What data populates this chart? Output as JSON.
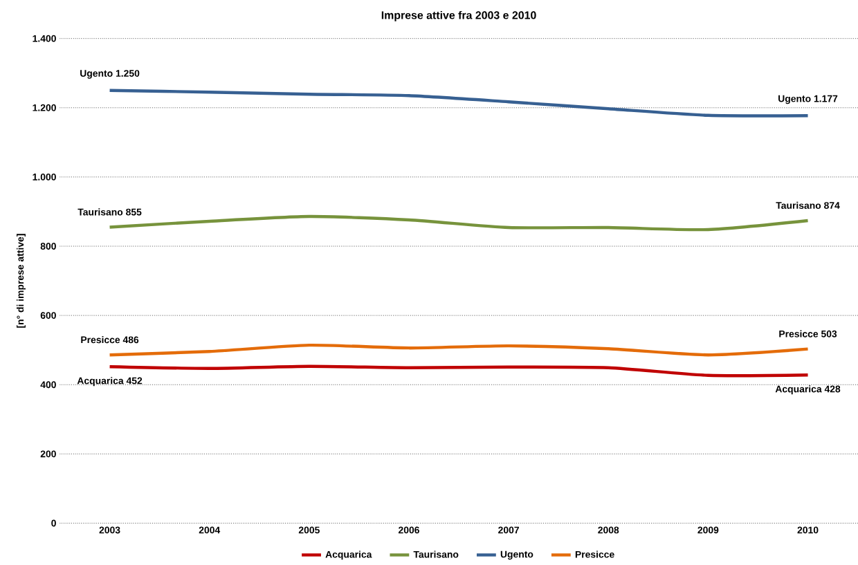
{
  "chart_data": {
    "type": "line",
    "title": "Imprese attive fra 2003 e 2010",
    "ylabel": "[n° di imprese attive]",
    "categories": [
      "2003",
      "2004",
      "2005",
      "2006",
      "2007",
      "2008",
      "2009",
      "2010"
    ],
    "series": [
      {
        "name": "Acquarica",
        "color": "#c00000",
        "values": [
          452,
          447,
          453,
          449,
          451,
          449,
          427,
          428
        ]
      },
      {
        "name": "Taurisano",
        "color": "#77933c",
        "values": [
          855,
          872,
          886,
          876,
          854,
          854,
          848,
          874
        ]
      },
      {
        "name": "Ugento",
        "color": "#376092",
        "values": [
          1250,
          1245,
          1239,
          1235,
          1217,
          1197,
          1178,
          1177
        ]
      },
      {
        "name": "Presicce",
        "color": "#e46c0a",
        "values": [
          486,
          496,
          514,
          506,
          512,
          504,
          486,
          503
        ]
      }
    ],
    "ylim": [
      0,
      1400
    ],
    "yticks": [
      0,
      200,
      400,
      600,
      800,
      {
        "value": 1000,
        "label": "1.000"
      },
      {
        "value": 1200,
        "label": "1.200"
      },
      {
        "value": 1400,
        "label": "1.400"
      }
    ],
    "grid": "y",
    "legend": "bottom",
    "marker": "none",
    "line_style": "solid",
    "annotations": [
      {
        "text": "Acquarica 452",
        "x": "2003",
        "y": 452
      },
      {
        "text": "Acquarica 428",
        "x": "2010",
        "y": 428
      },
      {
        "text": "Taurisano 855",
        "x": "2003",
        "y": 855
      },
      {
        "text": "Taurisano 874",
        "x": "2010",
        "y": 874
      },
      {
        "text": "Ugento 1.250",
        "x": "2003",
        "y": 1250
      },
      {
        "text": "Ugento 1.177",
        "x": "2010",
        "y": 1177
      },
      {
        "text": "Presicce 486",
        "x": "2003",
        "y": 486
      },
      {
        "text": "Presicce 503",
        "x": "2010",
        "y": 503
      }
    ]
  }
}
